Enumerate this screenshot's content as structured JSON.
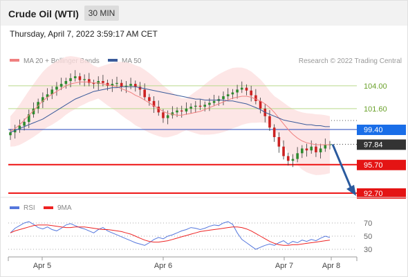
{
  "header": {
    "title": "Crude Oil (WTI)",
    "timeframe": "30 MIN"
  },
  "datetime": "Thursday, April 7, 2022 3:59:17 AM CET",
  "legend": {
    "ma20": "MA 20 + Bollinger Bands",
    "ma50": "MA 50",
    "copyright": "Research © 2022 Trading Central"
  },
  "rsi_legend": {
    "rsi": "RSI",
    "ma": "9MA"
  },
  "colors": {
    "ma20": "#f08080",
    "ma50": "#3a5a9a",
    "bollinger": "#fde0e0",
    "up_candle": "#2e8b2e",
    "down_candle": "#cc2222",
    "level_green": "#b9d98a",
    "level_blue": "#2244bb",
    "level_red": "#ee1111",
    "arrow": "#2a5a9e",
    "rsi": "#5577dd",
    "rsi_ma": "#ee2222"
  },
  "chart_data": [
    {
      "type": "candlestick",
      "y_axis": "price",
      "x_ticks": [
        "Apr 5",
        "Apr 6",
        "Apr 7",
        "Apr 8"
      ],
      "levels": [
        {
          "label": "104.00",
          "value": 104.0,
          "style": "green"
        },
        {
          "label": "101.60",
          "value": 101.6,
          "style": "green"
        },
        {
          "label": "99.40",
          "value": 99.4,
          "style": "blue"
        },
        {
          "label": "97.84",
          "value": 97.84,
          "style": "current"
        },
        {
          "label": "95.70",
          "value": 95.7,
          "style": "red"
        },
        {
          "label": "92.70",
          "value": 92.7,
          "style": "red"
        }
      ],
      "forecast_arrow": {
        "from": 97.84,
        "to": 92.7
      },
      "close": [
        99.1,
        99.4,
        99.8,
        100.2,
        101.0,
        101.6,
        102.3,
        102.8,
        103.1,
        103.6,
        103.9,
        104.2,
        104.5,
        104.8,
        105.0,
        104.6,
        104.7,
        104.3,
        104.2,
        104.5,
        104.3,
        104.0,
        104.2,
        104.3,
        103.9,
        104.0,
        104.2,
        103.9,
        103.6,
        102.8,
        102.4,
        101.8,
        101.2,
        100.6,
        100.9,
        101.2,
        101.4,
        101.3,
        101.6,
        101.8,
        101.9,
        101.8,
        102.0,
        102.2,
        102.4,
        102.6,
        102.9,
        103.1,
        103.3,
        103.6,
        103.8,
        103.5,
        103.0,
        102.4,
        101.6,
        100.8,
        99.6,
        98.6,
        97.6,
        96.6,
        96.1,
        96.3,
        96.9,
        97.4,
        97.2,
        97.6,
        97.0,
        97.4,
        97.8,
        97.84
      ],
      "ma20": [
        99.2,
        99.5,
        99.9,
        100.4,
        100.9,
        101.4,
        101.9,
        102.4,
        102.8,
        103.1,
        103.4,
        103.7,
        104.0,
        104.2,
        104.3,
        104.4,
        104.4,
        104.4,
        104.3,
        104.3,
        104.2,
        104.1,
        104.0,
        103.9,
        103.7,
        103.5,
        103.3,
        103.0,
        102.8,
        102.5,
        102.2,
        101.9,
        101.6,
        101.3,
        101.1,
        101.0,
        100.9,
        100.9,
        101.0,
        101.1,
        101.2,
        101.3,
        101.5,
        101.7,
        101.9,
        102.1,
        102.3,
        102.5,
        102.7,
        102.8,
        102.9,
        102.9,
        102.8,
        102.6,
        102.4,
        102.1,
        101.7,
        101.2,
        100.6,
        100.0,
        99.4,
        98.9,
        98.5,
        98.2,
        98.0,
        97.9,
        97.8,
        97.8,
        97.8,
        97.8
      ],
      "ma50": [
        99.1,
        99.3,
        99.5,
        99.7,
        99.9,
        100.1,
        100.3,
        100.5,
        100.8,
        101.1,
        101.4,
        101.7,
        102.0,
        102.3,
        102.6,
        102.8,
        103.0,
        103.2,
        103.4,
        103.5,
        103.6,
        103.7,
        103.8,
        103.8,
        103.9,
        103.9,
        103.9,
        103.9,
        103.8,
        103.7,
        103.6,
        103.5,
        103.4,
        103.3,
        103.2,
        103.1,
        103.0,
        102.9,
        102.8,
        102.7,
        102.6,
        102.6,
        102.5,
        102.5,
        102.5,
        102.5,
        102.5,
        102.4,
        102.4,
        102.3,
        102.2,
        102.1,
        101.9,
        101.7,
        101.5,
        101.2,
        101.0,
        100.8,
        100.6,
        100.4,
        100.3,
        100.2,
        100.1,
        100.0,
        99.9,
        99.9,
        99.8,
        99.8,
        99.7,
        99.7
      ]
    },
    {
      "type": "line",
      "y_axis": "RSI",
      "y_ticks": [
        "70",
        "50",
        "30"
      ],
      "ylim": [
        20,
        80
      ],
      "series": [
        {
          "name": "RSI",
          "values": [
            55,
            62,
            66,
            70,
            72,
            68,
            63,
            61,
            64,
            60,
            58,
            62,
            67,
            69,
            66,
            63,
            61,
            58,
            55,
            60,
            63,
            58,
            55,
            52,
            49,
            46,
            43,
            40,
            38,
            36,
            40,
            45,
            48,
            46,
            50,
            52,
            55,
            58,
            60,
            63,
            62,
            60,
            62,
            65,
            67,
            66,
            70,
            72,
            68,
            55,
            45,
            40,
            35,
            30,
            33,
            36,
            38,
            36,
            40,
            43,
            38,
            42,
            40,
            44,
            42,
            45,
            43,
            47,
            50,
            48
          ]
        },
        {
          "name": "9MA",
          "values": [
            55,
            58,
            60,
            62,
            64,
            66,
            67,
            67,
            67,
            66,
            65,
            64,
            63,
            63,
            64,
            64,
            64,
            63,
            62,
            61,
            60,
            60,
            59,
            58,
            57,
            55,
            53,
            50,
            47,
            44,
            42,
            41,
            41,
            42,
            43,
            45,
            47,
            49,
            51,
            53,
            55,
            57,
            58,
            59,
            60,
            61,
            62,
            63,
            64,
            64,
            63,
            61,
            58,
            54,
            50,
            46,
            42,
            39,
            37,
            36,
            36,
            37,
            37,
            38,
            39,
            40,
            41,
            42,
            43,
            44
          ]
        }
      ]
    }
  ]
}
